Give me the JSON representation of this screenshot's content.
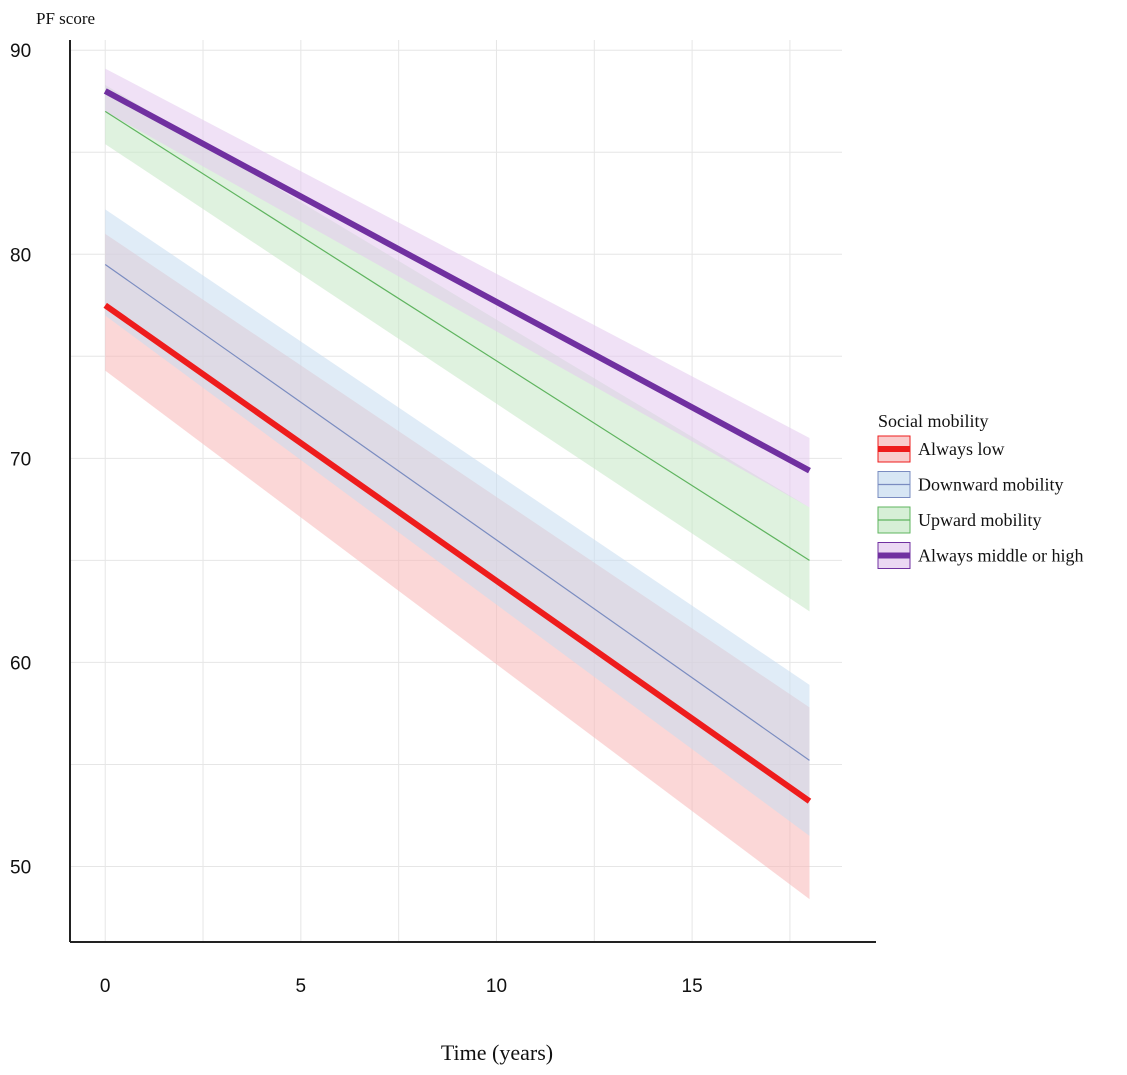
{
  "chart_data": {
    "type": "line",
    "title": "",
    "ylabel": "PF score",
    "xlabel": "Time (years)",
    "xlim": [
      -0.9,
      19.7
    ],
    "ylim": [
      46.3,
      90.5
    ],
    "x_ticks": [
      0,
      5,
      10,
      15
    ],
    "y_ticks": [
      50,
      60,
      70,
      80,
      90
    ],
    "x_grid": [
      0,
      2.5,
      5,
      7.5,
      10,
      12.5,
      15,
      17.5
    ],
    "y_grid": [
      50,
      55,
      60,
      65,
      70,
      75,
      80,
      85,
      90
    ],
    "grid": true,
    "legend": {
      "title": "Social mobility",
      "placement": "right"
    },
    "series": [
      {
        "name": "Always low",
        "color": "#ee1c1c",
        "band_color": "#f7b7b7",
        "x": [
          0,
          18
        ],
        "values": [
          77.5,
          53.2
        ],
        "lower": [
          74.3,
          48.4
        ],
        "upper": [
          81.0,
          57.8
        ],
        "weight": "thick"
      },
      {
        "name": "Downward mobility",
        "color": "#7a8cc0",
        "band_color": "#c6dcf0",
        "x": [
          0,
          18
        ],
        "values": [
          79.5,
          55.2
        ],
        "lower": [
          77.0,
          51.5
        ],
        "upper": [
          82.2,
          58.9
        ],
        "weight": "thin"
      },
      {
        "name": "Upward mobility",
        "color": "#5fb45f",
        "band_color": "#c5e8c5",
        "x": [
          0,
          18
        ],
        "values": [
          87.0,
          65.0
        ],
        "lower": [
          85.4,
          62.5
        ],
        "upper": [
          88.3,
          67.6
        ],
        "weight": "thin"
      },
      {
        "name": "Always middle or high",
        "color": "#7030a0",
        "band_color": "#e3c8ee",
        "x": [
          0,
          18
        ],
        "values": [
          88.0,
          69.4
        ],
        "lower": [
          87.0,
          67.6
        ],
        "upper": [
          89.1,
          71.0
        ],
        "weight": "thick"
      }
    ]
  }
}
